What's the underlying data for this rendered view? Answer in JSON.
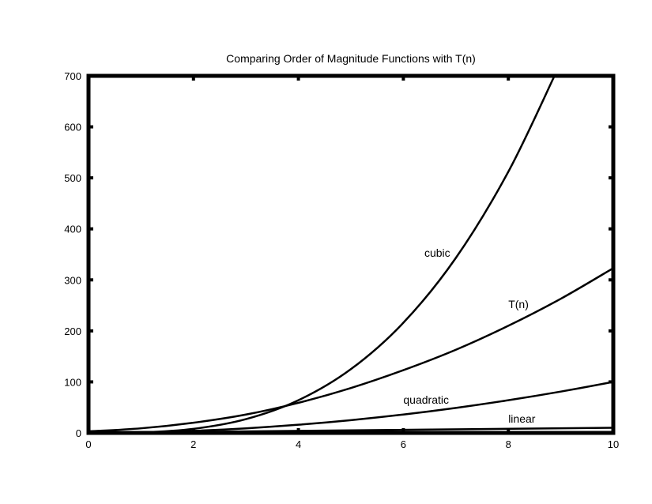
{
  "chart_data": {
    "type": "line",
    "title": "Comparing Order of Magnitude Functions with T(n)",
    "xlabel": "",
    "ylabel": "",
    "xlim": [
      0,
      10
    ],
    "ylim": [
      0,
      700
    ],
    "x_ticks": [
      0,
      2,
      4,
      6,
      8,
      10
    ],
    "y_ticks": [
      0,
      100,
      200,
      300,
      400,
      500,
      600,
      700
    ],
    "grid": false,
    "legend": "none",
    "series": [
      {
        "name": "cubic",
        "x": [
          0,
          1,
          2,
          3,
          4,
          5,
          6,
          7,
          8,
          8.88
        ],
        "y": [
          0,
          1,
          8,
          27,
          64,
          125,
          216,
          343,
          512,
          700
        ]
      },
      {
        "name": "T(n)",
        "x": [
          0,
          1,
          2,
          3,
          4,
          5,
          6,
          7,
          8,
          9,
          10
        ],
        "y": [
          3,
          9,
          20,
          36,
          59,
          88,
          123,
          163,
          210,
          263,
          323
        ]
      },
      {
        "name": "quadratic",
        "x": [
          0,
          1,
          2,
          3,
          4,
          5,
          6,
          7,
          8,
          9,
          10
        ],
        "y": [
          0,
          1,
          4,
          9,
          16,
          25,
          36,
          49,
          64,
          81,
          100
        ]
      },
      {
        "name": "linear",
        "x": [
          0,
          10
        ],
        "y": [
          0,
          10
        ]
      }
    ],
    "annotations": [
      {
        "text": "cubic",
        "x": 6.4,
        "y": 345
      },
      {
        "text": "T(n)",
        "x": 8.0,
        "y": 245
      },
      {
        "text": "quadratic",
        "x": 6.0,
        "y": 57
      },
      {
        "text": "linear",
        "x": 8.0,
        "y": 20
      }
    ],
    "line_color": "#000000"
  }
}
